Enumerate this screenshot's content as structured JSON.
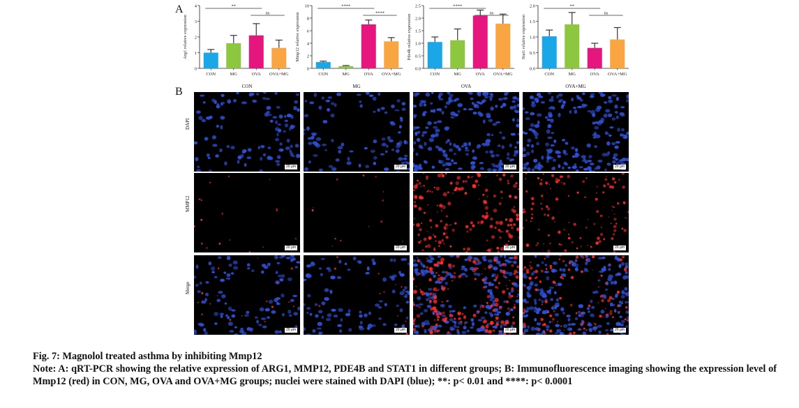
{
  "panels": {
    "a_label": "A",
    "b_label": "B"
  },
  "chart_data": [
    {
      "type": "bar",
      "ylabel": "Arg1 relative expression",
      "categories": [
        "CON",
        "MG",
        "OVA",
        "OVA+MG"
      ],
      "values": [
        1.0,
        1.6,
        2.1,
        1.3
      ],
      "errors": [
        0.2,
        0.5,
        0.75,
        0.5
      ],
      "ylim": [
        0,
        4
      ],
      "yticks": [
        "0",
        "1",
        "2",
        "3",
        "4"
      ],
      "colors": [
        "#1aa7e8",
        "#8dc63f",
        "#e5177e",
        "#f9a541"
      ],
      "significance": [
        {
          "from": 0,
          "to": 2,
          "label": "**"
        },
        {
          "from": 2,
          "to": 3,
          "label": "ns"
        }
      ]
    },
    {
      "type": "bar",
      "ylabel": "Mmp12 relative expression",
      "categories": [
        "CON",
        "MG",
        "OVA",
        "OVA+MG"
      ],
      "values": [
        1.0,
        0.35,
        7.0,
        4.3
      ],
      "errors": [
        0.15,
        0.1,
        0.7,
        0.6
      ],
      "ylim": [
        0,
        10
      ],
      "yticks": [
        "0",
        "2",
        "4",
        "6",
        "8",
        "10"
      ],
      "colors": [
        "#1aa7e8",
        "#8dc63f",
        "#e5177e",
        "#f9a541"
      ],
      "significance": [
        {
          "from": 0,
          "to": 2,
          "label": "****"
        },
        {
          "from": 2,
          "to": 3,
          "label": "****"
        }
      ]
    },
    {
      "type": "bar",
      "ylabel": "Pde4b relative expression",
      "categories": [
        "CON",
        "MG",
        "OVA",
        "OVA+MG"
      ],
      "values": [
        1.05,
        1.12,
        2.1,
        1.78
      ],
      "errors": [
        0.2,
        0.45,
        0.22,
        0.38
      ],
      "ylim": [
        0,
        2.5
      ],
      "yticks": [
        "0.0",
        "0.5",
        "1.0",
        "1.5",
        "2.0",
        "2.5"
      ],
      "colors": [
        "#1aa7e8",
        "#8dc63f",
        "#e5177e",
        "#f9a541"
      ],
      "significance": [
        {
          "from": 0,
          "to": 2,
          "label": "****"
        },
        {
          "from": 2,
          "to": 3,
          "label": "ns"
        }
      ]
    },
    {
      "type": "bar",
      "ylabel": "Stat1 relative expression",
      "categories": [
        "CON",
        "MG",
        "OVA",
        "OVA+MG"
      ],
      "values": [
        1.02,
        1.4,
        0.65,
        0.92
      ],
      "errors": [
        0.2,
        0.38,
        0.15,
        0.38
      ],
      "ylim": [
        0,
        2.0
      ],
      "yticks": [
        "0.0",
        "0.5",
        "1.0",
        "1.5",
        "2.0"
      ],
      "colors": [
        "#1aa7e8",
        "#8dc63f",
        "#e5177e",
        "#f9a541"
      ],
      "significance": [
        {
          "from": 0,
          "to": 2,
          "label": "**"
        },
        {
          "from": 2,
          "to": 3,
          "label": "ns"
        }
      ]
    }
  ],
  "microscopy": {
    "columns": [
      "CON",
      "MG",
      "OVA",
      "OVA+MG"
    ],
    "rows": [
      "DAPI",
      "MMP12",
      "Merge"
    ],
    "scale_label": "20 μm",
    "red_intensity": [
      0.05,
      0.03,
      0.9,
      0.55
    ],
    "colors": {
      "nucleus": "#2f50d6",
      "mmp12": "#ff2a2a"
    }
  },
  "caption": {
    "title": "Fig. 7: Magnolol treated asthma by inhibiting Mmp12",
    "note": "Note: A: qRT-PCR showing the relative expression of ARG1, MMP12, PDE4B and STAT1 in different groups; B: Immunofluorescence imaging showing the expression level of Mmp12 (red) in CON, MG, OVA and OVA+MG groups; nuclei were stained with DAPI (blue); **: p< 0.01 and ****: p< 0.0001"
  }
}
